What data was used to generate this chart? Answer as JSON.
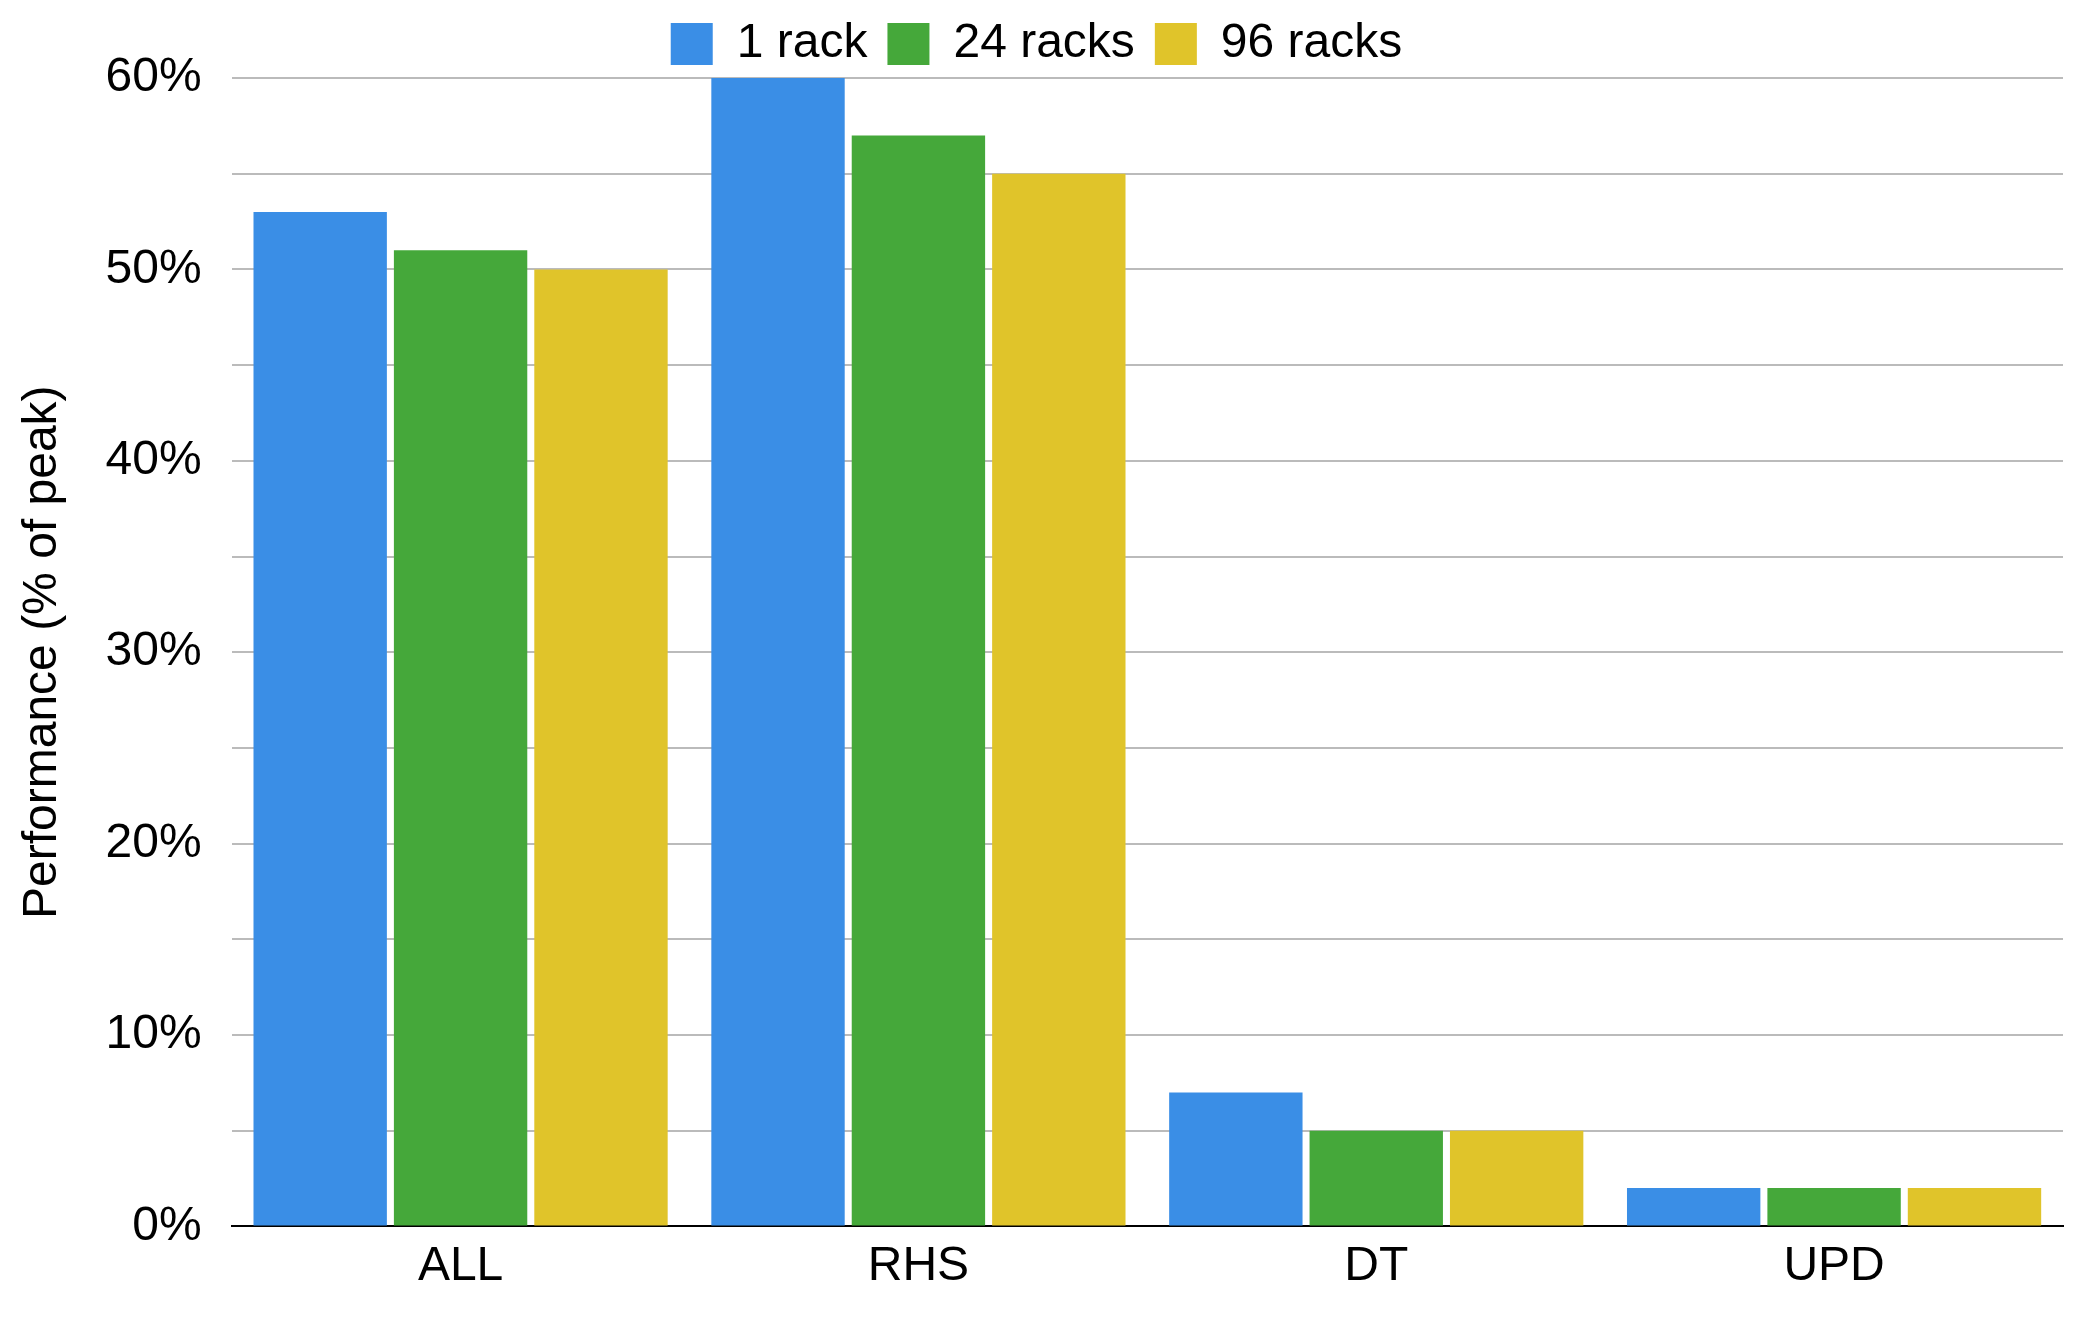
{
  "chart_data": {
    "type": "bar",
    "ylabel": "Performance (% of peak)",
    "categories": [
      "ALL",
      "RHS",
      "DT",
      "UPD"
    ],
    "series": [
      {
        "name": "1 rack",
        "color": "#3a8ee6",
        "values": [
          53,
          60,
          7,
          2
        ]
      },
      {
        "name": "24 racks",
        "color": "#45a83a",
        "values": [
          51,
          57,
          5,
          2
        ]
      },
      {
        "name": "96 racks",
        "color": "#e0c42a",
        "values": [
          50,
          55,
          5,
          2
        ]
      }
    ],
    "ylim": [
      0,
      60
    ],
    "yticks": [
      {
        "value": 0,
        "label": "0%"
      },
      {
        "value": 5,
        "label": null
      },
      {
        "value": 10,
        "label": "10%"
      },
      {
        "value": 15,
        "label": null
      },
      {
        "value": 20,
        "label": "20%"
      },
      {
        "value": 25,
        "label": null
      },
      {
        "value": 30,
        "label": "30%"
      },
      {
        "value": 35,
        "label": null
      },
      {
        "value": 40,
        "label": "40%"
      },
      {
        "value": 45,
        "label": null
      },
      {
        "value": 50,
        "label": "50%"
      },
      {
        "value": 55,
        "label": null
      },
      {
        "value": 60,
        "label": "60%"
      }
    ],
    "grid": "y",
    "legend": "top"
  }
}
